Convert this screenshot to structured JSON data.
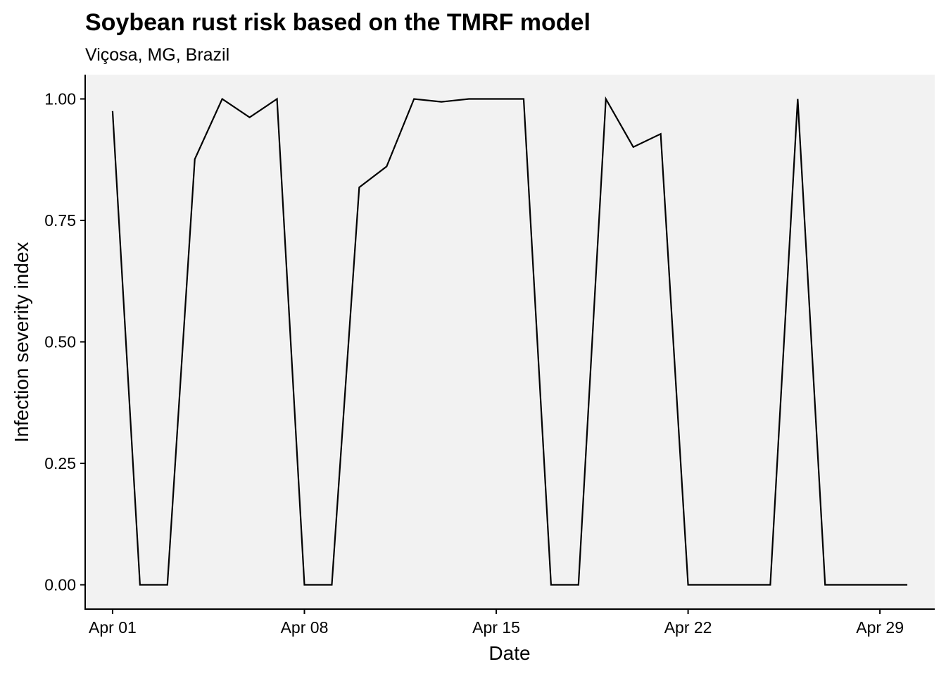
{
  "chart_data": {
    "type": "line",
    "title": "Soybean rust risk based on the TMRF model",
    "subtitle": "Viçosa, MG, Brazil",
    "xlabel": "Date",
    "ylabel": "Infection severity index",
    "x_tick_labels": [
      "Apr 01",
      "Apr 08",
      "Apr 15",
      "Apr 22",
      "Apr 29"
    ],
    "y_tick_labels": [
      "0.00",
      "0.25",
      "0.50",
      "0.75",
      "1.00"
    ],
    "y_ticks": [
      0,
      0.25,
      0.5,
      0.75,
      1.0
    ],
    "ylim": [
      -0.05,
      1.05
    ],
    "xlim": [
      "2023-03-31",
      "2023-05-01"
    ],
    "x": [
      "2023-04-01",
      "2023-04-02",
      "2023-04-03",
      "2023-04-04",
      "2023-04-05",
      "2023-04-06",
      "2023-04-07",
      "2023-04-08",
      "2023-04-09",
      "2023-04-10",
      "2023-04-11",
      "2023-04-12",
      "2023-04-13",
      "2023-04-14",
      "2023-04-15",
      "2023-04-16",
      "2023-04-17",
      "2023-04-18",
      "2023-04-19",
      "2023-04-20",
      "2023-04-21",
      "2023-04-22",
      "2023-04-23",
      "2023-04-24",
      "2023-04-25",
      "2023-04-26",
      "2023-04-27",
      "2023-04-28",
      "2023-04-29",
      "2023-04-30"
    ],
    "values": [
      0.975,
      0.0,
      0.0,
      0.876,
      1.0,
      0.962,
      1.0,
      0.0,
      0.0,
      0.818,
      0.861,
      1.0,
      0.994,
      1.0,
      1.0,
      1.0,
      0.0,
      0.0,
      1.0,
      0.901,
      0.928,
      0.0,
      0.0,
      0.0,
      0.0,
      1.0,
      0.0,
      0.0,
      0.0,
      0.0
    ],
    "grid": false,
    "legend": "none",
    "line_color": "#000000",
    "panel_background": "#f2f2f2"
  }
}
